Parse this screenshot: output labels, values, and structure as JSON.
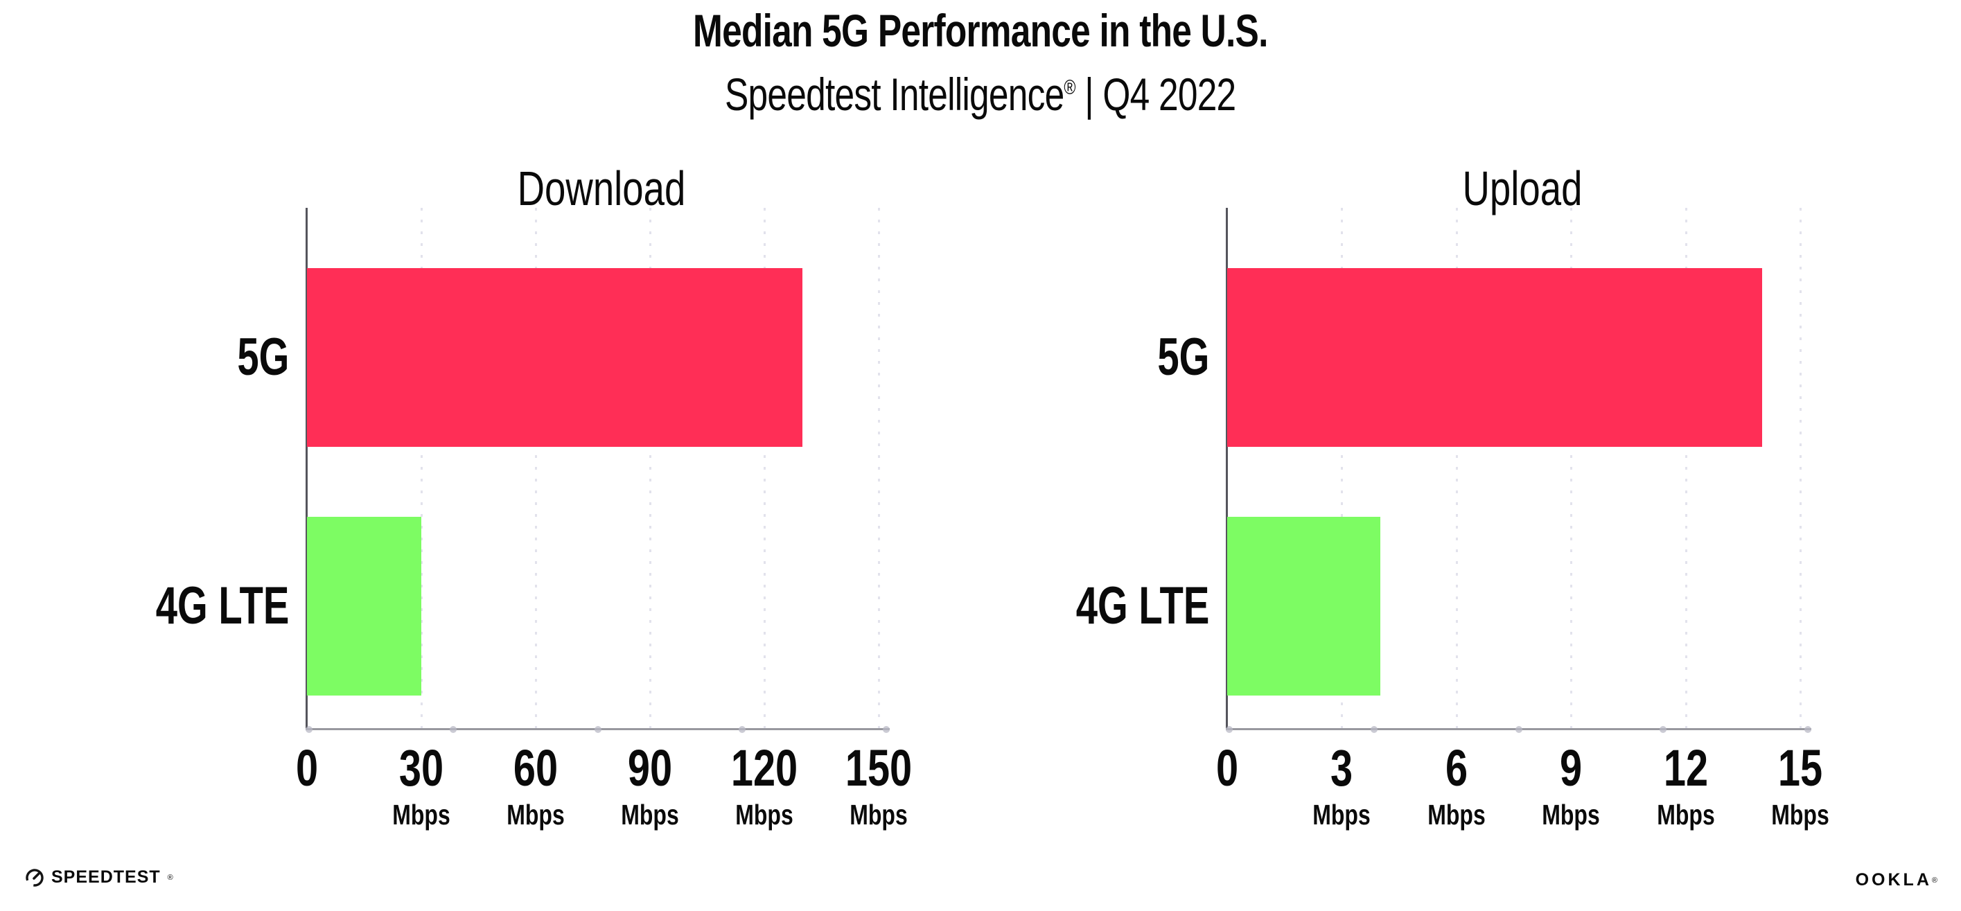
{
  "header": {
    "title": "Median 5G Performance in the U.S.",
    "subtitle_brand": "Speedtest Intelligence",
    "subtitle_reg": "®",
    "subtitle_divider": "|",
    "subtitle_period": "Q4 2022"
  },
  "footer": {
    "speedtest_label": "SPEEDTEST",
    "speedtest_mark": "®",
    "ookla_label": "OOKLA",
    "ookla_mark": "®"
  },
  "colors": {
    "bar_5g": "#FF2E56",
    "bar_4g_lte": "#7DFC63",
    "y_axis_line": "#55555C",
    "x_baseline": "#98989F",
    "gridline": "#E2E2EC",
    "text": "#0A0A0A"
  },
  "chart_data": [
    {
      "type": "bar",
      "orientation": "horizontal",
      "title": "Download",
      "categories": [
        "5G",
        "4G LTE"
      ],
      "values": [
        130,
        30
      ],
      "unit": "Mbps",
      "xlim": [
        0,
        150
      ],
      "xticks": [
        0,
        30,
        60,
        90,
        120,
        150
      ],
      "tick_unit_label": "Mbps",
      "grid": "dotted-vertical",
      "legend": "none",
      "bar_colors": [
        "#FF2E56",
        "#7DFC63"
      ]
    },
    {
      "type": "bar",
      "orientation": "horizontal",
      "title": "Upload",
      "categories": [
        "5G",
        "4G LTE"
      ],
      "values": [
        14,
        4
      ],
      "unit": "Mbps",
      "xlim": [
        0,
        15
      ],
      "xticks": [
        0,
        3,
        6,
        9,
        12,
        15
      ],
      "tick_unit_label": "Mbps",
      "grid": "dotted-vertical",
      "legend": "none",
      "bar_colors": [
        "#FF2E56",
        "#7DFC63"
      ]
    }
  ]
}
